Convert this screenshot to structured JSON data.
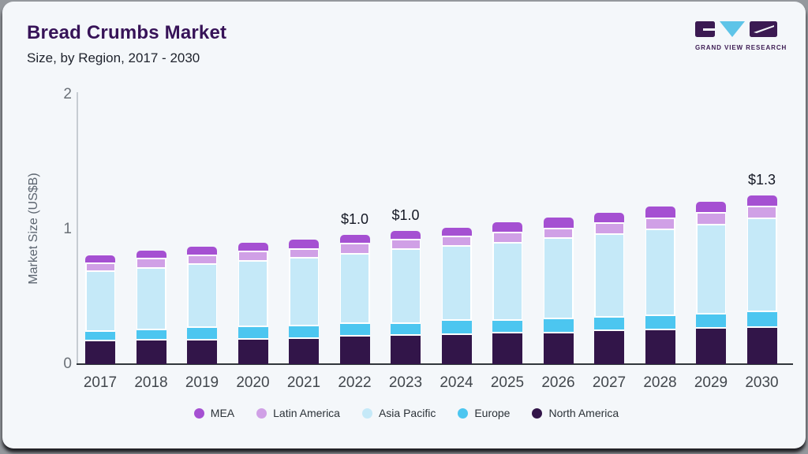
{
  "header": {
    "title": "Bread Crumbs Market",
    "subtitle": "Size, by Region, 2017 - 2030"
  },
  "logo": {
    "brand": "GRAND VIEW RESEARCH",
    "purple": "#3b1a52",
    "blue": "#5ec4e8"
  },
  "chart_data": {
    "type": "bar",
    "stacked": true,
    "title": "Bread Crumbs Market",
    "subtitle": "Size, by Region, 2017 - 2030",
    "ylabel": "Market Size (US$B)",
    "ylim": [
      0,
      2
    ],
    "yticks": [
      "0",
      "1",
      "2"
    ],
    "grid": false,
    "legend_position": "bottom",
    "categories": [
      "2017",
      "2018",
      "2019",
      "2020",
      "2021",
      "2022",
      "2023",
      "2024",
      "2025",
      "2026",
      "2027",
      "2028",
      "2029",
      "2030"
    ],
    "series": [
      {
        "name": "North America",
        "color": "#321549",
        "values": [
          0.18,
          0.185,
          0.19,
          0.195,
          0.2,
          0.215,
          0.224,
          0.23,
          0.238,
          0.238,
          0.257,
          0.263,
          0.273,
          0.283
        ]
      },
      {
        "name": "Europe",
        "color": "#4cc6f0",
        "values": [
          0.072,
          0.078,
          0.088,
          0.092,
          0.094,
          0.094,
          0.088,
          0.102,
          0.098,
          0.109,
          0.099,
          0.107,
          0.109,
          0.117
        ]
      },
      {
        "name": "Asia Pacific",
        "color": "#c5e9f8",
        "values": [
          0.445,
          0.458,
          0.47,
          0.485,
          0.5,
          0.515,
          0.546,
          0.55,
          0.571,
          0.593,
          0.614,
          0.634,
          0.661,
          0.686
        ]
      },
      {
        "name": "Latin America",
        "color": "#d0a0e6",
        "values": [
          0.055,
          0.068,
          0.064,
          0.072,
          0.068,
          0.074,
          0.072,
          0.074,
          0.078,
          0.074,
          0.082,
          0.082,
          0.088,
          0.09
        ]
      },
      {
        "name": "MEA",
        "color": "#a550d2",
        "values": [
          0.058,
          0.054,
          0.058,
          0.058,
          0.06,
          0.062,
          0.058,
          0.058,
          0.068,
          0.072,
          0.072,
          0.084,
          0.074,
          0.076
        ]
      }
    ],
    "totals": [
      0.81,
      0.84,
      0.87,
      0.9,
      0.92,
      0.96,
      0.99,
      1.01,
      1.05,
      1.09,
      1.12,
      1.17,
      1.21,
      1.25
    ],
    "legend_order": [
      "MEA",
      "Latin America",
      "Asia Pacific",
      "Europe",
      "North America"
    ],
    "annotations": [
      {
        "category": "2022",
        "text": "$1.0"
      },
      {
        "category": "2023",
        "text": "$1.0"
      },
      {
        "category": "2030",
        "text": "$1.3"
      }
    ]
  }
}
